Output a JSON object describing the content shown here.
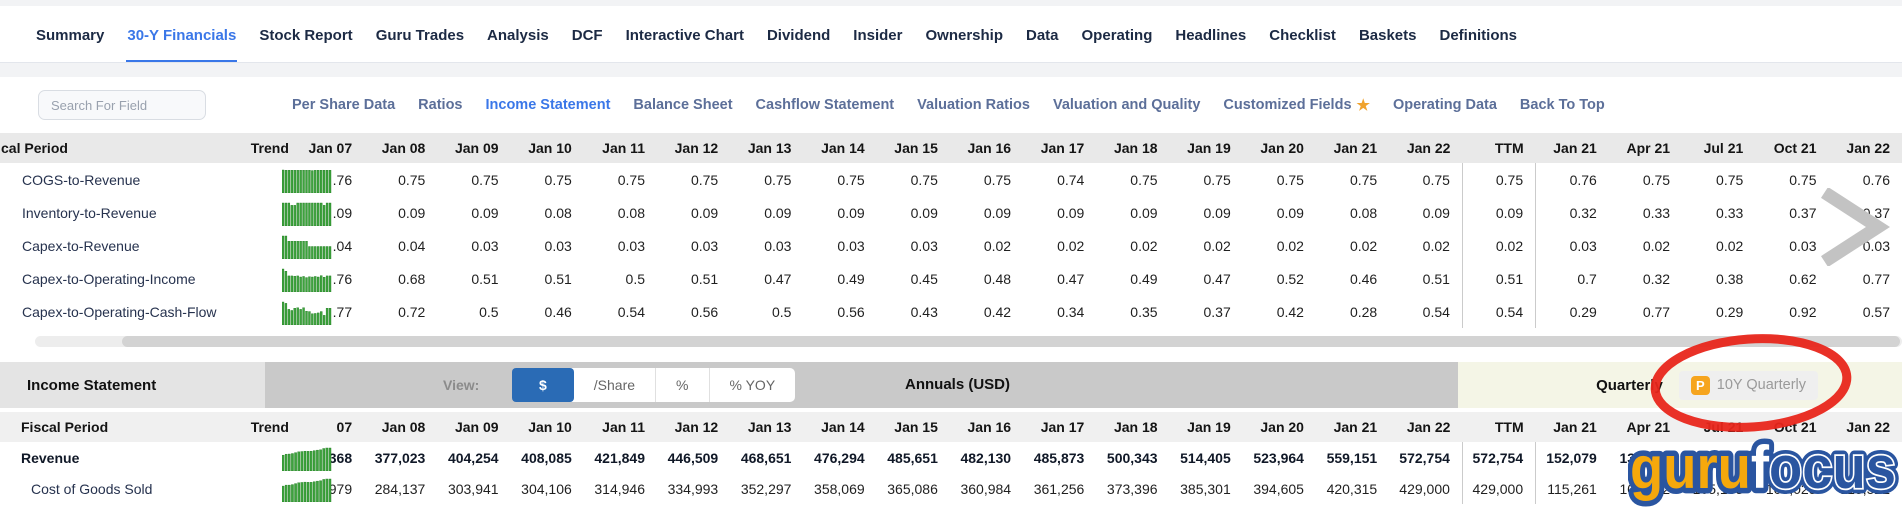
{
  "nav": {
    "items": [
      {
        "label": "Summary",
        "active": false
      },
      {
        "label": "30-Y Financials",
        "active": true
      },
      {
        "label": "Stock Report",
        "active": false
      },
      {
        "label": "Guru Trades",
        "active": false
      },
      {
        "label": "Analysis",
        "active": false
      },
      {
        "label": "DCF",
        "active": false
      },
      {
        "label": "Interactive Chart",
        "active": false
      },
      {
        "label": "Dividend",
        "active": false
      },
      {
        "label": "Insider",
        "active": false
      },
      {
        "label": "Ownership",
        "active": false
      },
      {
        "label": "Data",
        "active": false
      },
      {
        "label": "Operating",
        "active": false
      },
      {
        "label": "Headlines",
        "active": false
      },
      {
        "label": "Checklist",
        "active": false
      },
      {
        "label": "Baskets",
        "active": false
      },
      {
        "label": "Definitions",
        "active": false
      }
    ]
  },
  "toolbar": {
    "search_placeholder": "Search For Field",
    "subnav": [
      {
        "label": "Per Share Data",
        "active": false,
        "star": false
      },
      {
        "label": "Ratios",
        "active": false,
        "star": false
      },
      {
        "label": "Income Statement",
        "active": true,
        "star": false
      },
      {
        "label": "Balance Sheet",
        "active": false,
        "star": false
      },
      {
        "label": "Cashflow Statement",
        "active": false,
        "star": false
      },
      {
        "label": "Valuation Ratios",
        "active": false,
        "star": false
      },
      {
        "label": "Valuation and Quality",
        "active": false,
        "star": false
      },
      {
        "label": "Customized Fields",
        "active": false,
        "star": true
      },
      {
        "label": "Operating Data",
        "active": false,
        "star": false
      },
      {
        "label": "Back To Top",
        "active": false,
        "star": false
      }
    ]
  },
  "icons": {
    "customized_fields_star": "★",
    "premium_badge": "P",
    "next_arrow": "chevron-right"
  },
  "table1": {
    "header": [
      "cal Period",
      "Trend",
      "Jan 07",
      "Jan 08",
      "Jan 09",
      "Jan 10",
      "Jan 11",
      "Jan 12",
      "Jan 13",
      "Jan 14",
      "Jan 15",
      "Jan 16",
      "Jan 17",
      "Jan 18",
      "Jan 19",
      "Jan 20",
      "Jan 21",
      "Jan 22",
      "TTM",
      "Jan 21",
      "Apr 21",
      "Jul 21",
      "Oct 21",
      "Jan 22"
    ],
    "rows": [
      {
        "label": "COGS-to-Revenue",
        "bold": false,
        "values": [
          ".76",
          "0.75",
          "0.75",
          "0.75",
          "0.75",
          "0.75",
          "0.75",
          "0.75",
          "0.75",
          "0.75",
          "0.74",
          "0.75",
          "0.75",
          "0.75",
          "0.75",
          "0.75",
          "0.75",
          "0.76",
          "0.75",
          "0.75",
          "0.75",
          "0.76"
        ]
      },
      {
        "label": "Inventory-to-Revenue",
        "bold": false,
        "values": [
          ".09",
          "0.09",
          "0.09",
          "0.08",
          "0.08",
          "0.09",
          "0.09",
          "0.09",
          "0.09",
          "0.09",
          "0.09",
          "0.09",
          "0.09",
          "0.09",
          "0.08",
          "0.09",
          "0.09",
          "0.32",
          "0.33",
          "0.33",
          "0.37",
          "0.37"
        ]
      },
      {
        "label": "Capex-to-Revenue",
        "bold": false,
        "values": [
          ".04",
          "0.04",
          "0.03",
          "0.03",
          "0.03",
          "0.03",
          "0.03",
          "0.03",
          "0.03",
          "0.02",
          "0.02",
          "0.02",
          "0.02",
          "0.02",
          "0.02",
          "0.02",
          "0.02",
          "0.03",
          "0.02",
          "0.02",
          "0.03",
          "0.03"
        ]
      },
      {
        "label": "Capex-to-Operating-Income",
        "bold": false,
        "values": [
          ".76",
          "0.68",
          "0.51",
          "0.51",
          "0.5",
          "0.51",
          "0.47",
          "0.49",
          "0.45",
          "0.48",
          "0.47",
          "0.49",
          "0.47",
          "0.52",
          "0.46",
          "0.51",
          "0.51",
          "0.7",
          "0.32",
          "0.38",
          "0.62",
          "0.77"
        ]
      },
      {
        "label": "Capex-to-Operating-Cash-Flow",
        "bold": false,
        "values": [
          ".77",
          "0.72",
          "0.5",
          "0.46",
          "0.54",
          "0.56",
          "0.5",
          "0.56",
          "0.43",
          "0.42",
          "0.34",
          "0.35",
          "0.37",
          "0.42",
          "0.28",
          "0.54",
          "0.54",
          "0.29",
          "0.77",
          "0.29",
          "0.92",
          "0.57"
        ]
      }
    ]
  },
  "section_bar": {
    "title": "Income Statement",
    "view_label": "View:",
    "view_options": [
      {
        "label": "$",
        "active": true
      },
      {
        "label": "/Share",
        "active": false
      },
      {
        "label": "%",
        "active": false
      },
      {
        "label": "% YOY",
        "active": false
      }
    ],
    "annuals_label": "Annuals (USD)",
    "quarterly_label": "Quarterly",
    "premium_badge": "P",
    "ten_y_quarterly_label": "10Y Quarterly"
  },
  "table2": {
    "header": [
      "Fiscal Period",
      "Trend",
      "07",
      "Jan 08",
      "Jan 09",
      "Jan 10",
      "Jan 11",
      "Jan 12",
      "Jan 13",
      "Jan 14",
      "Jan 15",
      "Jan 16",
      "Jan 17",
      "Jan 18",
      "Jan 19",
      "Jan 20",
      "Jan 21",
      "Jan 22",
      "TTM",
      "Jan 21",
      "Apr 21",
      "Jul 21",
      "Oct 21",
      "Jan 22"
    ],
    "rows": [
      {
        "label": "Revenue",
        "bold": true,
        "values": [
          "368",
          "377,023",
          "404,254",
          "408,085",
          "421,849",
          "446,509",
          "468,651",
          "476,294",
          "485,651",
          "482,130",
          "485,873",
          "500,343",
          "514,405",
          "523,964",
          "559,151",
          "572,754",
          "572,754",
          "152,079",
          "138,310",
          "",
          "",
          ""
        ]
      },
      {
        "label": "Cost of Goods Sold",
        "bold": false,
        "values": [
          "979",
          "284,137",
          "303,941",
          "304,106",
          "314,946",
          "334,993",
          "352,297",
          "358,069",
          "365,086",
          "360,984",
          "361,256",
          "373,396",
          "385,301",
          "394,605",
          "420,315",
          "429,000",
          "429,000",
          "115,261",
          "103,272",
          "105,183",
          "105,023",
          "115,522"
        ]
      }
    ]
  },
  "watermark": {
    "full": "gurufocus",
    "guru": "guru",
    "f": "f",
    "ocus": "ocus"
  },
  "annotations": {
    "red_circle_target": "10Y Quarterly"
  },
  "colors": {
    "accent_blue": "#3a77e8",
    "active_view_button": "#2a6bb5",
    "premium_orange": "#f6a51f",
    "annotation_red": "#e8261b",
    "trend_green": "#3da33d",
    "quarterly_section_bg": "#f4f5e6",
    "watermark_orange": "#f5a80c",
    "watermark_navy": "#2a55a0"
  }
}
